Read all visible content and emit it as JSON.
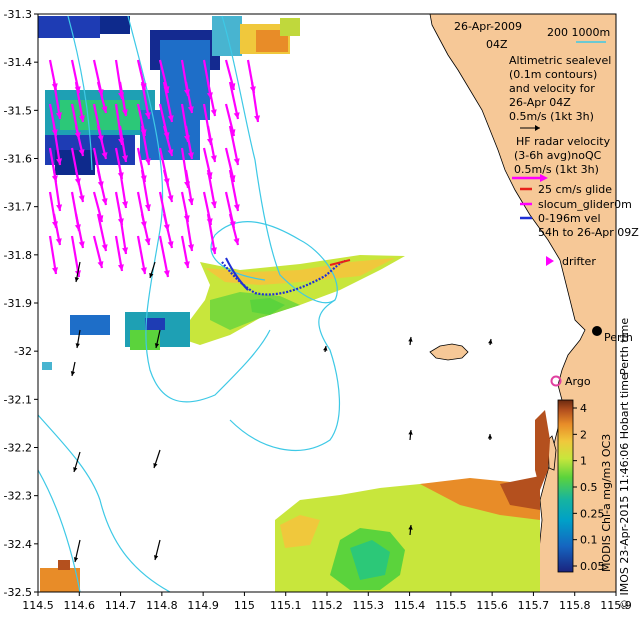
{
  "map": {
    "date": "26-Apr-2009",
    "time": "04Z",
    "scale_bar": "200   1000m",
    "sealevel_legend": [
      "Altimetric sealevel",
      "(0.1m contours)",
      "and velocity for",
      "26-Apr 04Z",
      "0.5m/s (1kt 3h)"
    ],
    "hf_legend": [
      "HF radar velocity",
      "(3-6h avg)noQC",
      "0.5m/s (1kt 3h)"
    ],
    "glider_legend": [
      "25 cm/s glide",
      "slocum_glider0m",
      "0-196m vel",
      "54h to 26-Apr 09Z"
    ],
    "drifter_label": "drifter",
    "city_label": "Perth",
    "argo_label": "Argo",
    "right_caption": "Perth time",
    "colorbar_title": "MODIS Chl-a mg/m3 OC3",
    "credit": "© IMOS 23-Apr-2015 11:46:06 Hobart time",
    "x_ticks": [
      "114.5",
      "114.6",
      "114.7",
      "114.8",
      "114.9",
      "115",
      "115.1",
      "115.2",
      "115.3",
      "115.4",
      "115.5",
      "115.6",
      "115.7",
      "115.8",
      "115.9"
    ],
    "y_ticks": [
      "-31.3",
      "-31.4",
      "-31.5",
      "-31.6",
      "-31.7",
      "-31.8",
      "-31.9",
      "-32",
      "-32.1",
      "-32.2",
      "-32.3",
      "-32.4",
      "-32.5"
    ],
    "colorbar_ticks": [
      "4",
      "2",
      "1",
      "0.5",
      "0.25",
      "0.1",
      "0.05"
    ],
    "colors": {
      "land": "#f6c897",
      "ocean": "#ffffff",
      "contour": "#3ec9e6",
      "hf_arrow": "#ff00ff",
      "glider": "#1f2fd6",
      "glider_red": "#e8201a"
    }
  }
}
